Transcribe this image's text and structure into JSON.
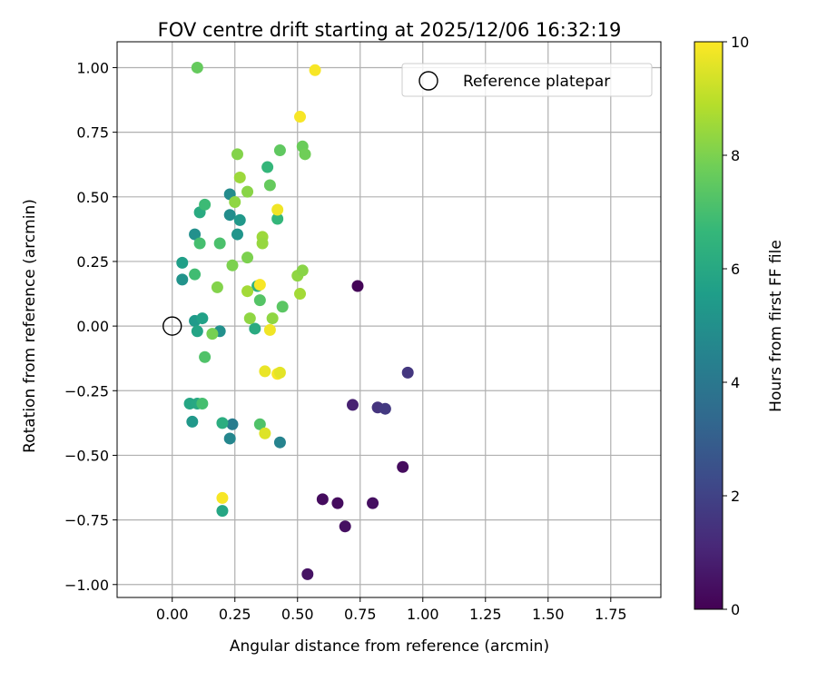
{
  "chart_data": {
    "type": "scatter",
    "title": "FOV centre drift starting at 2025/12/06 16:32:19",
    "xlabel": "Angular distance from reference (arcmin)",
    "ylabel": "Rotation from reference (arcmin)",
    "xlim": [
      -0.22,
      1.95
    ],
    "ylim": [
      -1.05,
      1.1
    ],
    "xticks": [
      0.0,
      0.25,
      0.5,
      0.75,
      1.0,
      1.25,
      1.5,
      1.75
    ],
    "xtick_labels": [
      "0.00",
      "0.25",
      "0.50",
      "0.75",
      "1.00",
      "1.25",
      "1.50",
      "1.75"
    ],
    "yticks": [
      -1.0,
      -0.75,
      -0.5,
      -0.25,
      0.0,
      0.25,
      0.5,
      0.75,
      1.0
    ],
    "ytick_labels": [
      "−1.00",
      "−0.75",
      "−0.50",
      "−0.25",
      "0.00",
      "0.25",
      "0.50",
      "0.75",
      "1.00"
    ],
    "grid": true,
    "legend": {
      "position": "top-right",
      "entries": [
        "Reference platepar"
      ]
    },
    "reference_point": {
      "label": "Reference platepar",
      "x": 0.0,
      "y": 0.0
    },
    "colorbar": {
      "label": "Hours from first FF file",
      "min": 0,
      "max": 10,
      "ticks": [
        0,
        2,
        4,
        6,
        8,
        10
      ],
      "tick_labels": [
        "0",
        "2",
        "4",
        "6",
        "8",
        "10"
      ],
      "colormap": "viridis",
      "stops": [
        "#440154",
        "#482878",
        "#3e4989",
        "#31688e",
        "#26828e",
        "#1f9e89",
        "#35b779",
        "#6ece58",
        "#b5de2b",
        "#fde725"
      ]
    },
    "points": [
      {
        "x": 0.74,
        "y": 0.155,
        "c": 0.1
      },
      {
        "x": 0.94,
        "y": -0.18,
        "c": 1.6
      },
      {
        "x": 0.72,
        "y": -0.305,
        "c": 0.9
      },
      {
        "x": 0.82,
        "y": -0.315,
        "c": 1.5
      },
      {
        "x": 0.85,
        "y": -0.32,
        "c": 1.7
      },
      {
        "x": 0.92,
        "y": -0.545,
        "c": 0.3
      },
      {
        "x": 0.6,
        "y": -0.67,
        "c": 0.3
      },
      {
        "x": 0.66,
        "y": -0.685,
        "c": 0.3
      },
      {
        "x": 0.8,
        "y": -0.685,
        "c": 0.4
      },
      {
        "x": 0.69,
        "y": -0.775,
        "c": 0.4
      },
      {
        "x": 0.54,
        "y": -0.96,
        "c": 0.5
      },
      {
        "x": 0.24,
        "y": -0.38,
        "c": 4.2
      },
      {
        "x": 0.23,
        "y": -0.435,
        "c": 4.6
      },
      {
        "x": 0.43,
        "y": -0.45,
        "c": 4.5
      },
      {
        "x": 0.19,
        "y": -0.02,
        "c": 5.0
      },
      {
        "x": 0.23,
        "y": 0.51,
        "c": 4.8
      },
      {
        "x": 0.23,
        "y": 0.43,
        "c": 4.9
      },
      {
        "x": 0.26,
        "y": 0.355,
        "c": 5.2
      },
      {
        "x": 0.27,
        "y": 0.41,
        "c": 5.3
      },
      {
        "x": 0.09,
        "y": 0.355,
        "c": 5.0
      },
      {
        "x": 0.04,
        "y": 0.18,
        "c": 5.1
      },
      {
        "x": 0.04,
        "y": 0.245,
        "c": 5.6
      },
      {
        "x": 0.08,
        "y": -0.37,
        "c": 5.3
      },
      {
        "x": 0.09,
        "y": 0.02,
        "c": 5.4
      },
      {
        "x": 0.12,
        "y": 0.03,
        "c": 5.7
      },
      {
        "x": 0.1,
        "y": -0.02,
        "c": 5.8
      },
      {
        "x": 0.07,
        "y": -0.3,
        "c": 5.9
      },
      {
        "x": 0.1,
        "y": -0.3,
        "c": 6.0
      },
      {
        "x": 0.11,
        "y": 0.44,
        "c": 6.1
      },
      {
        "x": 0.2,
        "y": -0.715,
        "c": 5.9
      },
      {
        "x": 0.2,
        "y": -0.375,
        "c": 6.2
      },
      {
        "x": 0.33,
        "y": -0.01,
        "c": 6.1
      },
      {
        "x": 0.34,
        "y": 0.155,
        "c": 6.3
      },
      {
        "x": 0.38,
        "y": 0.615,
        "c": 6.6
      },
      {
        "x": 0.42,
        "y": 0.415,
        "c": 6.6
      },
      {
        "x": 0.13,
        "y": 0.47,
        "c": 6.8
      },
      {
        "x": 0.09,
        "y": 0.2,
        "c": 6.9
      },
      {
        "x": 0.11,
        "y": 0.32,
        "c": 7.0
      },
      {
        "x": 0.19,
        "y": 0.32,
        "c": 7.1
      },
      {
        "x": 0.12,
        "y": -0.3,
        "c": 7.0
      },
      {
        "x": 0.13,
        "y": -0.12,
        "c": 7.2
      },
      {
        "x": 0.35,
        "y": -0.38,
        "c": 7.2
      },
      {
        "x": 0.35,
        "y": 0.1,
        "c": 7.3
      },
      {
        "x": 0.44,
        "y": 0.075,
        "c": 7.4
      },
      {
        "x": 0.43,
        "y": 0.68,
        "c": 7.5
      },
      {
        "x": 0.39,
        "y": 0.545,
        "c": 7.6
      },
      {
        "x": 0.52,
        "y": 0.695,
        "c": 7.7
      },
      {
        "x": 0.53,
        "y": 0.665,
        "c": 7.8
      },
      {
        "x": 0.1,
        "y": 1.0,
        "c": 7.6
      },
      {
        "x": 0.16,
        "y": -0.03,
        "c": 7.9
      },
      {
        "x": 0.18,
        "y": 0.15,
        "c": 8.1
      },
      {
        "x": 0.24,
        "y": 0.235,
        "c": 8.0
      },
      {
        "x": 0.25,
        "y": 0.48,
        "c": 8.3
      },
      {
        "x": 0.26,
        "y": 0.665,
        "c": 8.1
      },
      {
        "x": 0.27,
        "y": 0.575,
        "c": 8.5
      },
      {
        "x": 0.3,
        "y": 0.52,
        "c": 8.2
      },
      {
        "x": 0.3,
        "y": 0.265,
        "c": 8.0
      },
      {
        "x": 0.31,
        "y": 0.03,
        "c": 8.3
      },
      {
        "x": 0.3,
        "y": 0.135,
        "c": 8.6
      },
      {
        "x": 0.36,
        "y": 0.345,
        "c": 8.5
      },
      {
        "x": 0.36,
        "y": 0.32,
        "c": 8.4
      },
      {
        "x": 0.4,
        "y": 0.03,
        "c": 8.3
      },
      {
        "x": 0.5,
        "y": 0.195,
        "c": 8.3
      },
      {
        "x": 0.51,
        "y": 0.125,
        "c": 8.6
      },
      {
        "x": 0.52,
        "y": 0.215,
        "c": 8.2
      },
      {
        "x": 0.35,
        "y": 0.16,
        "c": 9.9
      },
      {
        "x": 0.39,
        "y": -0.015,
        "c": 9.8
      },
      {
        "x": 0.37,
        "y": -0.175,
        "c": 9.7
      },
      {
        "x": 0.42,
        "y": -0.185,
        "c": 9.9
      },
      {
        "x": 0.43,
        "y": -0.18,
        "c": 9.6
      },
      {
        "x": 0.37,
        "y": -0.415,
        "c": 9.5
      },
      {
        "x": 0.2,
        "y": -0.665,
        "c": 9.9
      },
      {
        "x": 0.42,
        "y": 0.45,
        "c": 9.8
      },
      {
        "x": 0.51,
        "y": 0.81,
        "c": 9.9
      },
      {
        "x": 0.57,
        "y": 0.99,
        "c": 9.9
      }
    ]
  }
}
